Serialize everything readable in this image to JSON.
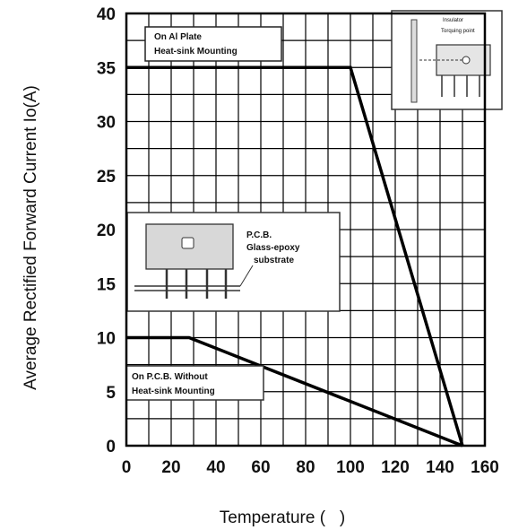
{
  "chart_data": {
    "type": "line",
    "xlabel": "Temperature (   )",
    "ylabel": "Average Rectified Forward Current Io(A)",
    "xlim": [
      0,
      160
    ],
    "ylim": [
      0,
      40
    ],
    "xticks": [
      "0",
      "20",
      "40",
      "60",
      "80",
      "100",
      "120",
      "140",
      "160"
    ],
    "yticks": [
      "0",
      "5",
      "10",
      "15",
      "20",
      "25",
      "30",
      "35",
      "40"
    ],
    "grid": true,
    "series": [
      {
        "x": [
          0,
          100,
          150
        ],
        "y": [
          35,
          35,
          0
        ],
        "color": "#000000"
      },
      {
        "x": [
          0,
          28,
          150
        ],
        "y": [
          10,
          10,
          0
        ],
        "color": "#000000"
      }
    ],
    "annotations": {
      "al_plate": [
        "On Al Plate",
        "Heat-sink Mounting"
      ],
      "pcb": [
        "P.C.B.",
        "Glass-epoxy",
        "substrate"
      ],
      "pcb_no_sink": [
        "On P.C.B. Without",
        "Heat-sink Mounting"
      ],
      "inset": [
        "Insulator",
        "Torquing point"
      ]
    }
  }
}
